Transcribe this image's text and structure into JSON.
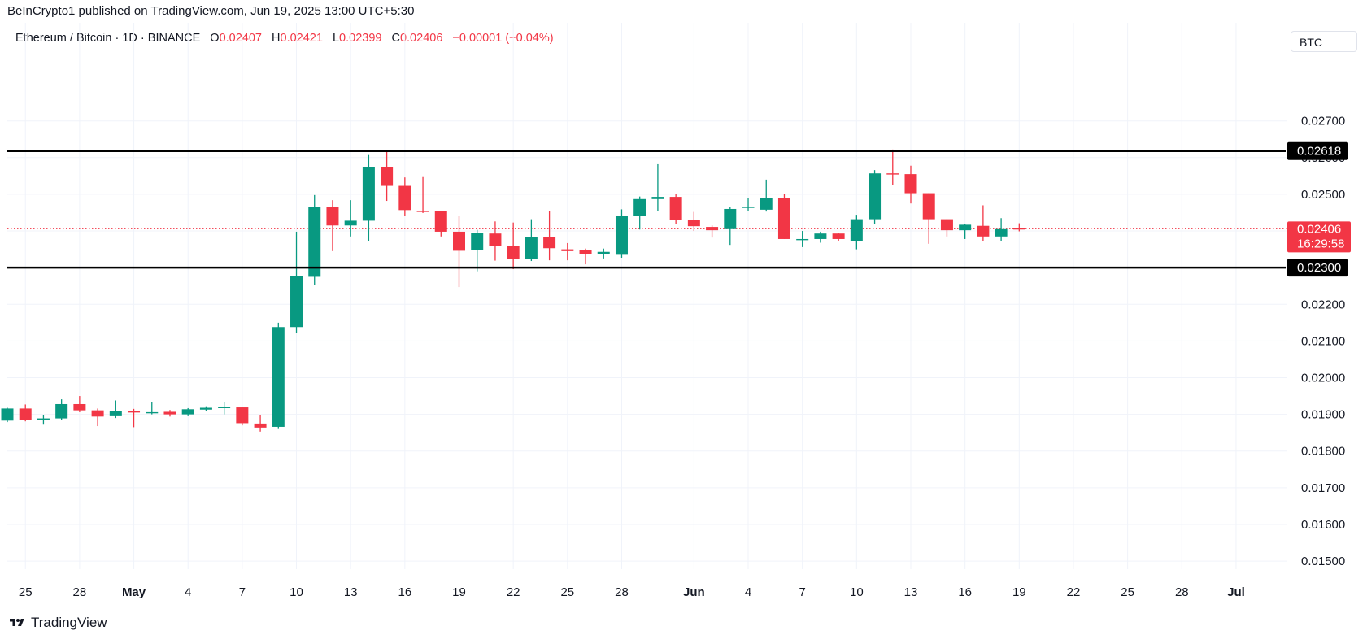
{
  "publisher_line": "BeInCrypto1 published on TradingView.com, Jun 19, 2025 13:00 UTC+5:30",
  "legend": {
    "symbol": "Ethereum / Bitcoin · 1D · BINANCE",
    "open_label": "O",
    "open": "0.02407",
    "high_label": "H",
    "high": "0.02421",
    "low_label": "L",
    "low": "0.02399",
    "close_label": "C",
    "close": "0.02406",
    "change": "−0.00001 (−0.04%)"
  },
  "currency": "BTC",
  "brand": "TradingView",
  "colors": {
    "up": "#089981",
    "down": "#f23645",
    "grid": "#f0f3fa",
    "level": "#000000",
    "price_line": "#f23645"
  },
  "chart_data": {
    "type": "candlestick",
    "y_ticks": [
      "0.02700",
      "0.02600",
      "0.02500",
      "0.02400",
      "0.02300",
      "0.02200",
      "0.02100",
      "0.02000",
      "0.01900",
      "0.01800",
      "0.01700",
      "0.01600",
      "0.01500"
    ],
    "ylim": [
      0.01478,
      0.0287
    ],
    "x_ticks": [
      {
        "label": "25",
        "i": 1
      },
      {
        "label": "28",
        "i": 4
      },
      {
        "label": "May",
        "i": 7,
        "bold": true
      },
      {
        "label": "4",
        "i": 10
      },
      {
        "label": "7",
        "i": 13
      },
      {
        "label": "10",
        "i": 16
      },
      {
        "label": "13",
        "i": 19
      },
      {
        "label": "16",
        "i": 22
      },
      {
        "label": "19",
        "i": 25
      },
      {
        "label": "22",
        "i": 28
      },
      {
        "label": "25",
        "i": 31
      },
      {
        "label": "28",
        "i": 34
      },
      {
        "label": "Jun",
        "i": 38,
        "bold": true
      },
      {
        "label": "4",
        "i": 41
      },
      {
        "label": "7",
        "i": 44
      },
      {
        "label": "10",
        "i": 47
      },
      {
        "label": "13",
        "i": 50
      },
      {
        "label": "16",
        "i": 53
      },
      {
        "label": "19",
        "i": 56
      },
      {
        "label": "22",
        "i": 59
      },
      {
        "label": "25",
        "i": 62
      },
      {
        "label": "28",
        "i": 65
      },
      {
        "label": "Jul",
        "i": 68,
        "bold": true
      }
    ],
    "candles": [
      {
        "d": "Apr 24",
        "o": 0.01883,
        "h": 0.01918,
        "l": 0.01879,
        "c": 0.01916
      },
      {
        "d": "Apr 25",
        "o": 0.01916,
        "h": 0.01927,
        "l": 0.01881,
        "c": 0.01885
      },
      {
        "d": "Apr 26",
        "o": 0.01885,
        "h": 0.01898,
        "l": 0.01872,
        "c": 0.01889
      },
      {
        "d": "Apr 27",
        "o": 0.01889,
        "h": 0.01941,
        "l": 0.01884,
        "c": 0.01928
      },
      {
        "d": "Apr 28",
        "o": 0.01928,
        "h": 0.0195,
        "l": 0.01906,
        "c": 0.01911
      },
      {
        "d": "Apr 29",
        "o": 0.01911,
        "h": 0.01916,
        "l": 0.01868,
        "c": 0.01894
      },
      {
        "d": "Apr 30",
        "o": 0.01895,
        "h": 0.01938,
        "l": 0.0189,
        "c": 0.0191
      },
      {
        "d": "May 1",
        "o": 0.0191,
        "h": 0.01915,
        "l": 0.01865,
        "c": 0.01905
      },
      {
        "d": "May 2",
        "o": 0.01905,
        "h": 0.01933,
        "l": 0.019,
        "c": 0.01906
      },
      {
        "d": "May 3",
        "o": 0.01907,
        "h": 0.01912,
        "l": 0.01894,
        "c": 0.019
      },
      {
        "d": "May 4",
        "o": 0.019,
        "h": 0.01917,
        "l": 0.01895,
        "c": 0.01914
      },
      {
        "d": "May 5",
        "o": 0.01913,
        "h": 0.01922,
        "l": 0.01908,
        "c": 0.01918
      },
      {
        "d": "May 6",
        "o": 0.01918,
        "h": 0.01934,
        "l": 0.019,
        "c": 0.0192
      },
      {
        "d": "May 7",
        "o": 0.01919,
        "h": 0.01921,
        "l": 0.0187,
        "c": 0.01876
      },
      {
        "d": "May 8",
        "o": 0.01875,
        "h": 0.01899,
        "l": 0.01853,
        "c": 0.01864
      },
      {
        "d": "May 9",
        "o": 0.01866,
        "h": 0.0215,
        "l": 0.0186,
        "c": 0.02138
      },
      {
        "d": "May 10",
        "o": 0.02138,
        "h": 0.02398,
        "l": 0.02123,
        "c": 0.02278
      },
      {
        "d": "May 11",
        "o": 0.02275,
        "h": 0.02498,
        "l": 0.02253,
        "c": 0.02465
      },
      {
        "d": "May 12",
        "o": 0.02465,
        "h": 0.02484,
        "l": 0.02345,
        "c": 0.02415
      },
      {
        "d": "May 13",
        "o": 0.02415,
        "h": 0.02484,
        "l": 0.02385,
        "c": 0.02428
      },
      {
        "d": "May 14",
        "o": 0.02428,
        "h": 0.02607,
        "l": 0.02372,
        "c": 0.02574
      },
      {
        "d": "May 15",
        "o": 0.02574,
        "h": 0.02621,
        "l": 0.02482,
        "c": 0.02523
      },
      {
        "d": "May 16",
        "o": 0.02523,
        "h": 0.02546,
        "l": 0.0244,
        "c": 0.02457
      },
      {
        "d": "May 17",
        "o": 0.02455,
        "h": 0.02547,
        "l": 0.02449,
        "c": 0.02452
      },
      {
        "d": "May 18",
        "o": 0.02454,
        "h": 0.02454,
        "l": 0.02385,
        "c": 0.02398
      },
      {
        "d": "May 19",
        "o": 0.02398,
        "h": 0.0244,
        "l": 0.02247,
        "c": 0.02346
      },
      {
        "d": "May 20",
        "o": 0.02347,
        "h": 0.02403,
        "l": 0.0229,
        "c": 0.02395
      },
      {
        "d": "May 21",
        "o": 0.02393,
        "h": 0.02426,
        "l": 0.02319,
        "c": 0.02358
      },
      {
        "d": "May 22",
        "o": 0.02358,
        "h": 0.02423,
        "l": 0.02296,
        "c": 0.02323
      },
      {
        "d": "May 23",
        "o": 0.02323,
        "h": 0.02432,
        "l": 0.02318,
        "c": 0.02384
      },
      {
        "d": "May 24",
        "o": 0.02384,
        "h": 0.02455,
        "l": 0.0232,
        "c": 0.02353
      },
      {
        "d": "May 25",
        "o": 0.0235,
        "h": 0.02367,
        "l": 0.0232,
        "c": 0.02345
      },
      {
        "d": "May 26",
        "o": 0.02347,
        "h": 0.02352,
        "l": 0.02309,
        "c": 0.02338
      },
      {
        "d": "May 27",
        "o": 0.02338,
        "h": 0.02352,
        "l": 0.02325,
        "c": 0.02343
      },
      {
        "d": "May 28",
        "o": 0.02335,
        "h": 0.02459,
        "l": 0.02327,
        "c": 0.0244
      },
      {
        "d": "May 29",
        "o": 0.0244,
        "h": 0.02494,
        "l": 0.02404,
        "c": 0.02487
      },
      {
        "d": "May 30",
        "o": 0.02487,
        "h": 0.02582,
        "l": 0.02455,
        "c": 0.02493
      },
      {
        "d": "May 31",
        "o": 0.02493,
        "h": 0.02502,
        "l": 0.02418,
        "c": 0.0243
      },
      {
        "d": "Jun 1",
        "o": 0.0243,
        "h": 0.02452,
        "l": 0.024,
        "c": 0.02413
      },
      {
        "d": "Jun 2",
        "o": 0.02411,
        "h": 0.02415,
        "l": 0.02382,
        "c": 0.02402
      },
      {
        "d": "Jun 3",
        "o": 0.02405,
        "h": 0.02466,
        "l": 0.02362,
        "c": 0.0246
      },
      {
        "d": "Jun 4",
        "o": 0.02466,
        "h": 0.0249,
        "l": 0.02455,
        "c": 0.02466
      },
      {
        "d": "Jun 5",
        "o": 0.02458,
        "h": 0.0254,
        "l": 0.02453,
        "c": 0.0249
      },
      {
        "d": "Jun 6",
        "o": 0.0249,
        "h": 0.02502,
        "l": 0.02378,
        "c": 0.02378
      },
      {
        "d": "Jun 7",
        "o": 0.02378,
        "h": 0.024,
        "l": 0.02356,
        "c": 0.02378
      },
      {
        "d": "Jun 8",
        "o": 0.02378,
        "h": 0.02398,
        "l": 0.02368,
        "c": 0.02393
      },
      {
        "d": "Jun 9",
        "o": 0.02393,
        "h": 0.02395,
        "l": 0.02373,
        "c": 0.02378
      },
      {
        "d": "Jun 10",
        "o": 0.02372,
        "h": 0.02442,
        "l": 0.0235,
        "c": 0.02432
      },
      {
        "d": "Jun 11",
        "o": 0.02432,
        "h": 0.02566,
        "l": 0.0242,
        "c": 0.02557
      },
      {
        "d": "Jun 12",
        "o": 0.02557,
        "h": 0.02622,
        "l": 0.02525,
        "c": 0.02555
      },
      {
        "d": "Jun 13",
        "o": 0.02555,
        "h": 0.02578,
        "l": 0.02475,
        "c": 0.02503
      },
      {
        "d": "Jun 14",
        "o": 0.02503,
        "h": 0.02503,
        "l": 0.02365,
        "c": 0.02432
      },
      {
        "d": "Jun 15",
        "o": 0.02432,
        "h": 0.02432,
        "l": 0.02385,
        "c": 0.02402
      },
      {
        "d": "Jun 16",
        "o": 0.02402,
        "h": 0.0242,
        "l": 0.02378,
        "c": 0.02417
      },
      {
        "d": "Jun 17",
        "o": 0.02414,
        "h": 0.0247,
        "l": 0.02373,
        "c": 0.02385
      },
      {
        "d": "Jun 18",
        "o": 0.02385,
        "h": 0.02435,
        "l": 0.02373,
        "c": 0.02405
      },
      {
        "d": "Jun 19",
        "o": 0.02407,
        "h": 0.02421,
        "l": 0.02399,
        "c": 0.02406
      }
    ],
    "levels": [
      {
        "value": 0.02618,
        "label": "0.02618"
      },
      {
        "value": 0.023,
        "label": "0.02300"
      }
    ],
    "last_price": {
      "value": 0.02406,
      "label": "0.02406",
      "countdown": "16:29:58"
    },
    "grid": true
  }
}
